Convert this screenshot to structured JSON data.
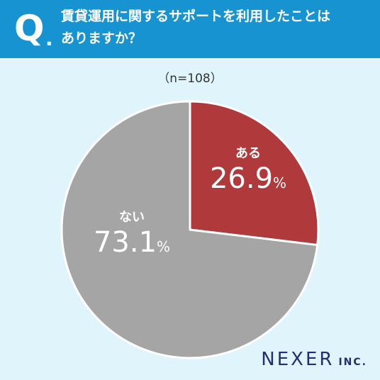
{
  "header": {
    "q_mark": "Q",
    "q_dot": ".",
    "question_line1": "賃貸運用に関するサポートを利用したことは",
    "question_line2": "ありますか？"
  },
  "sample_label": "（n=108）",
  "logo": {
    "main": "NEXER",
    "suffix": "INC."
  },
  "colors": {
    "header": "#1793d1",
    "background": "#dff5fb",
    "yes": "#b0393b",
    "no": "#a5a5a5",
    "logo": "#24306d"
  },
  "chart_data": {
    "type": "pie",
    "title": "賃貸運用に関するサポートを利用したことはありますか？",
    "n": 108,
    "slices": [
      {
        "label": "ある",
        "value": 26.9,
        "display": "26.9",
        "unit": "%",
        "color": "#b0393b"
      },
      {
        "label": "ない",
        "value": 73.1,
        "display": "73.1",
        "unit": "%",
        "color": "#a5a5a5"
      }
    ]
  }
}
